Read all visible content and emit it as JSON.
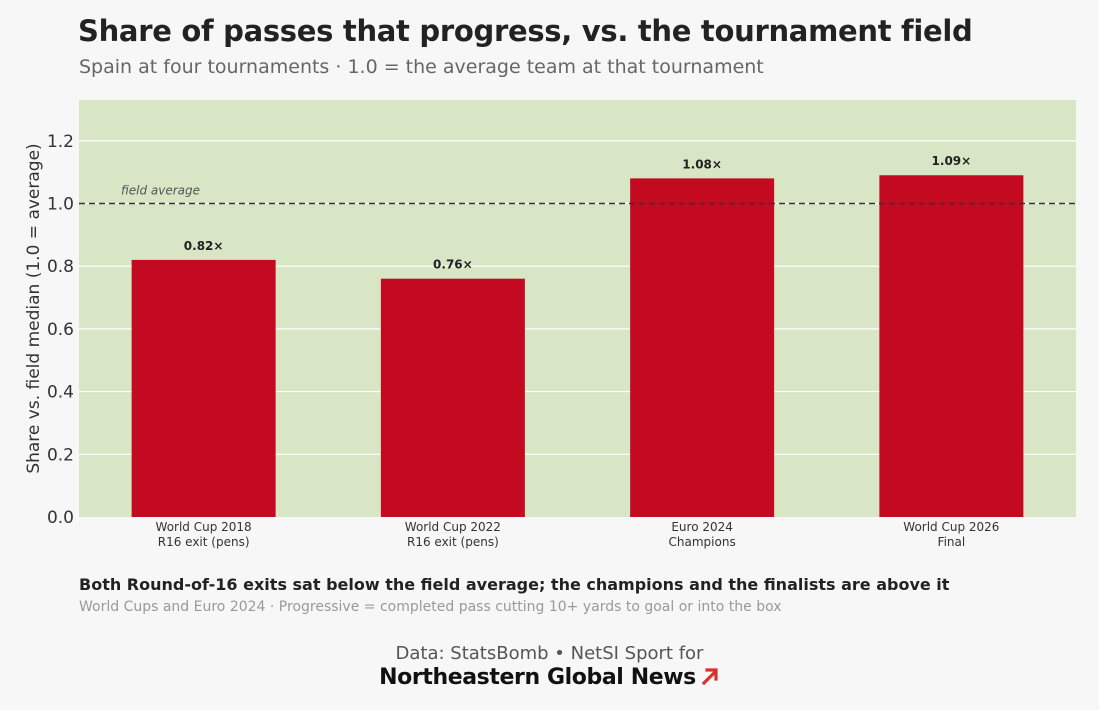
{
  "header": {
    "title": "Share of passes that progress, vs. the tournament field",
    "subtitle": "Spain at four tournaments  ·  1.0 = the average team at that tournament"
  },
  "chart_data": {
    "type": "bar",
    "categories": [
      [
        "World Cup 2018",
        "R16 exit (pens)"
      ],
      [
        "World Cup 2022",
        "R16 exit (pens)"
      ],
      [
        "Euro 2024",
        "Champions"
      ],
      [
        "World Cup 2026",
        "Final"
      ]
    ],
    "values": [
      0.82,
      0.76,
      1.08,
      1.09
    ],
    "data_labels": [
      "0.82×",
      "0.76×",
      "1.08×",
      "1.09×"
    ],
    "ylabel": "Share vs. field median  (1.0 = average)",
    "xlabel": "",
    "ylim": [
      0,
      1.33
    ],
    "yticks": [
      0.0,
      0.2,
      0.4,
      0.6,
      0.8,
      1.0,
      1.2
    ],
    "ytick_labels": [
      "0.0",
      "0.2",
      "0.4",
      "0.6",
      "0.8",
      "1.0",
      "1.2"
    ],
    "reference_line": {
      "value": 1.0,
      "label": "field average",
      "style": "dashed"
    },
    "grid": "horizontal",
    "legend": "none",
    "colors": {
      "bar": "#c30a20",
      "panel": "#d8e6c6",
      "grid": "#ffffff",
      "refline": "#333333"
    }
  },
  "footer": {
    "note": "Both Round-of-16 exits sat below the field average; the champions and the finalists are above it",
    "note_sub": "World Cups and Euro 2024  ·  Progressive = completed pass cutting 10+ yards to goal or into the box",
    "credit": "Data: StatsBomb  •  NetSI Sport for",
    "brand": "Northeastern Global News",
    "brand_icon": "arrow-up-right-icon",
    "brand_icon_color": "#d6312b"
  }
}
